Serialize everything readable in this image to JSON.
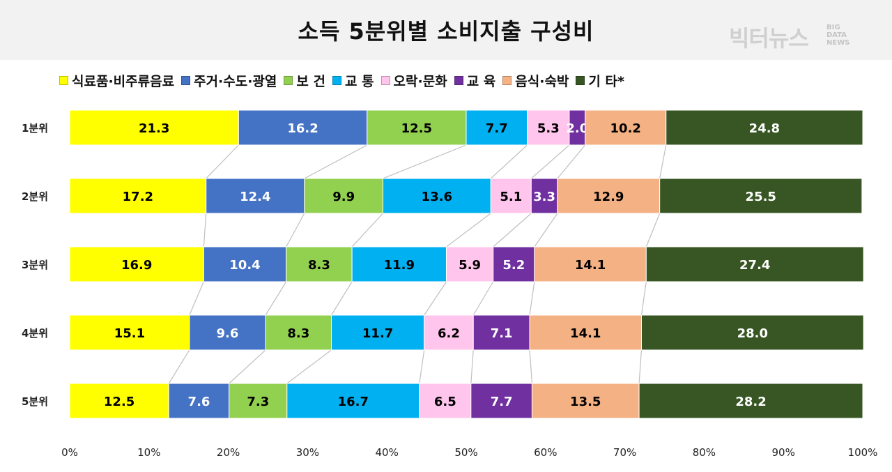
{
  "title": "소득 5분위별 소비지출 구성비",
  "brand": {
    "name": "빅터뉴스",
    "sub": [
      "BIG",
      "DATA",
      "NEWS"
    ]
  },
  "chart_data": {
    "type": "bar",
    "orientation": "horizontal",
    "stacked": "percent",
    "categories": [
      "1분위",
      "2분위",
      "3분위",
      "4분위",
      "5분위"
    ],
    "series": [
      {
        "name": "식료품·비주류음료",
        "color": "#ffff00",
        "label_color": "#000000",
        "values": [
          21.3,
          17.2,
          16.9,
          15.1,
          12.5
        ]
      },
      {
        "name": "주거·수도·광열",
        "color": "#4472c4",
        "label_color": "#ffffff",
        "values": [
          16.2,
          12.4,
          10.4,
          9.6,
          7.6
        ]
      },
      {
        "name": "보 건",
        "color": "#92d050",
        "label_color": "#000000",
        "values": [
          12.5,
          9.9,
          8.3,
          8.3,
          7.3
        ]
      },
      {
        "name": "교 통",
        "color": "#00b0f0",
        "label_color": "#000000",
        "values": [
          7.7,
          13.6,
          11.9,
          11.7,
          16.7
        ]
      },
      {
        "name": "오락·문화",
        "color": "#ffc5ec",
        "label_color": "#000000",
        "values": [
          5.3,
          5.1,
          5.9,
          6.2,
          6.5
        ]
      },
      {
        "name": "교 육",
        "color": "#7030a0",
        "label_color": "#ffffff",
        "values": [
          2.0,
          3.3,
          5.2,
          7.1,
          7.7
        ]
      },
      {
        "name": "음식·숙박",
        "color": "#f4b183",
        "label_color": "#000000",
        "values": [
          10.2,
          12.9,
          14.1,
          14.1,
          13.5
        ]
      },
      {
        "name": "기 타*",
        "color": "#375623",
        "label_color": "#ffffff",
        "values": [
          24.8,
          25.5,
          27.4,
          28.0,
          28.2
        ]
      }
    ],
    "x_ticks": [
      "0%",
      "10%",
      "20%",
      "30%",
      "40%",
      "50%",
      "60%",
      "70%",
      "80%",
      "90%",
      "100%"
    ],
    "xlim": [
      0,
      100
    ],
    "legend_position": "top",
    "grid": false,
    "series_lines": true
  }
}
